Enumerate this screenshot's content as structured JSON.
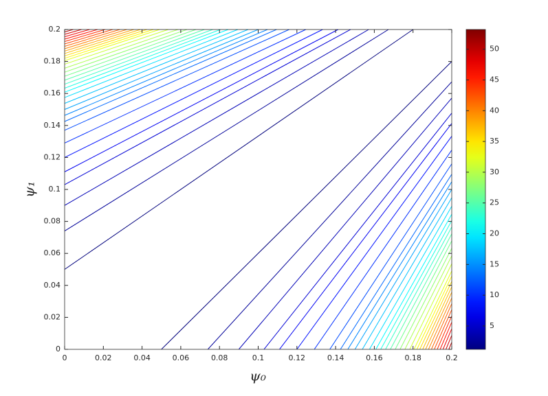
{
  "chart_data": {
    "type": "contour",
    "xlabel": "ψ₀",
    "ylabel": "ψ₁",
    "colormap": "jet",
    "xlim": [
      0,
      0.2
    ],
    "ylim": [
      0,
      0.2
    ],
    "xticks": [
      0,
      0.02,
      0.04,
      0.06,
      0.08,
      0.1,
      0.12,
      0.14,
      0.16,
      0.18,
      0.2
    ],
    "yticks": [
      0,
      0.02,
      0.04,
      0.06,
      0.08,
      0.1,
      0.12,
      0.14,
      0.16,
      0.18,
      0.2
    ],
    "clim": [
      1.2,
      53.2
    ],
    "cticks": [
      5,
      10,
      15,
      20,
      25,
      30,
      35,
      40,
      45,
      50
    ],
    "contours": [
      {
        "level": 1,
        "x": [
          0,
          0.18,
          null,
          0.05,
          0.2
        ],
        "y": [
          0.05,
          0.2,
          null,
          0,
          0.18
        ]
      },
      {
        "level": 2.5,
        "x": [
          0,
          0.1673,
          null,
          0.074,
          0.2
        ],
        "y": [
          0.074,
          0.2,
          null,
          0,
          0.1673
        ]
      },
      {
        "level": 4,
        "x": [
          0,
          0.1571,
          null,
          0.09,
          0.2
        ],
        "y": [
          0.09,
          0.2,
          null,
          0,
          0.1571
        ]
      },
      {
        "level": 5.5,
        "x": [
          0,
          0.1477,
          null,
          0.103,
          0.2
        ],
        "y": [
          0.103,
          0.2,
          null,
          0,
          0.1477
        ]
      },
      {
        "level": 7,
        "x": [
          0,
          0.1413,
          null,
          0.111,
          0.2
        ],
        "y": [
          0.111,
          0.2,
          null,
          0,
          0.1413
        ]
      },
      {
        "level": 8.5,
        "x": [
          0,
          0.1333,
          null,
          0.12,
          0.2
        ],
        "y": [
          0.12,
          0.2,
          null,
          0,
          0.1333
        ]
      },
      {
        "level": 10,
        "x": [
          0,
          0.1246,
          null,
          0.129,
          0.2
        ],
        "y": [
          0.129,
          0.2,
          null,
          0,
          0.1246
        ]
      },
      {
        "level": 11.5,
        "x": [
          0,
          0.116,
          null,
          0.137,
          0.2
        ],
        "y": [
          0.137,
          0.2,
          null,
          0,
          0.116
        ]
      },
      {
        "level": 13,
        "x": [
          0,
          0.1095,
          null,
          0.1425,
          0.2
        ],
        "y": [
          0.1425,
          0.2,
          null,
          0,
          0.1095
        ]
      },
      {
        "level": 14.5,
        "x": [
          0,
          0.1048,
          null,
          0.1463,
          0.2
        ],
        "y": [
          0.1463,
          0.2,
          null,
          0,
          0.1048
        ]
      },
      {
        "level": 16,
        "x": [
          0,
          0.1,
          null,
          0.15,
          0.2
        ],
        "y": [
          0.15,
          0.2,
          null,
          0,
          0.1
        ]
      },
      {
        "level": 17.5,
        "x": [
          0,
          0.0948,
          null,
          0.1538,
          0.2
        ],
        "y": [
          0.1538,
          0.2,
          null,
          0,
          0.0948
        ]
      },
      {
        "level": 19,
        "x": [
          0,
          0.0895,
          null,
          0.1575,
          0.2
        ],
        "y": [
          0.1575,
          0.2,
          null,
          0,
          0.0895
        ]
      },
      {
        "level": 20.5,
        "x": [
          0,
          0.0845,
          null,
          0.1608,
          0.2
        ],
        "y": [
          0.1608,
          0.2,
          null,
          0,
          0.0845
        ]
      },
      {
        "level": 22,
        "x": [
          0,
          0.0805,
          null,
          0.1633,
          0.2
        ],
        "y": [
          0.1633,
          0.2,
          null,
          0,
          0.0805
        ]
      },
      {
        "level": 23.5,
        "x": [
          0,
          0.0765,
          null,
          0.1658,
          0.2
        ],
        "y": [
          0.1658,
          0.2,
          null,
          0,
          0.0765
        ]
      },
      {
        "level": 25,
        "x": [
          0,
          0.0722,
          null,
          0.1683,
          0.2
        ],
        "y": [
          0.1683,
          0.2,
          null,
          0,
          0.0722
        ]
      },
      {
        "level": 26.5,
        "x": [
          0,
          0.0678,
          null,
          0.1708,
          0.2
        ],
        "y": [
          0.1708,
          0.2,
          null,
          0,
          0.0678
        ]
      },
      {
        "level": 28,
        "x": [
          0,
          0.0632,
          null,
          0.1733,
          0.2
        ],
        "y": [
          0.1733,
          0.2,
          null,
          0,
          0.0632
        ]
      },
      {
        "level": 29.5,
        "x": [
          0,
          0.0585,
          null,
          0.1758,
          0.2
        ],
        "y": [
          0.1758,
          0.2,
          null,
          0,
          0.0585
        ]
      },
      {
        "level": 31,
        "x": [
          0,
          0.0535,
          null,
          0.1783,
          0.2
        ],
        "y": [
          0.1783,
          0.2,
          null,
          0,
          0.0535
        ]
      },
      {
        "level": 32.5,
        "x": [
          0,
          0.049,
          null,
          0.1805,
          0.2
        ],
        "y": [
          0.1805,
          0.2,
          null,
          0,
          0.049
        ]
      },
      {
        "level": 34,
        "x": [
          0,
          0.0458,
          null,
          0.182,
          0.2
        ],
        "y": [
          0.182,
          0.2,
          null,
          0,
          0.0458
        ]
      },
      {
        "level": 35.5,
        "x": [
          0,
          0.0425,
          null,
          0.1835,
          0.2
        ],
        "y": [
          0.1835,
          0.2,
          null,
          0,
          0.0425
        ]
      },
      {
        "level": 37,
        "x": [
          0,
          0.0391,
          null,
          0.185,
          0.2
        ],
        "y": [
          0.185,
          0.2,
          null,
          0,
          0.0391
        ]
      },
      {
        "level": 38.5,
        "x": [
          0,
          0.0357,
          null,
          0.1865,
          0.2
        ],
        "y": [
          0.1865,
          0.2,
          null,
          0,
          0.0357
        ]
      },
      {
        "level": 40,
        "x": [
          0,
          0.0321,
          null,
          0.188,
          0.2
        ],
        "y": [
          0.188,
          0.2,
          null,
          0,
          0.0321
        ]
      },
      {
        "level": 41.5,
        "x": [
          0,
          0.0285,
          null,
          0.1895,
          0.2
        ],
        "y": [
          0.1895,
          0.2,
          null,
          0,
          0.0285
        ]
      },
      {
        "level": 43,
        "x": [
          0,
          0.0248,
          null,
          0.191,
          0.2
        ],
        "y": [
          0.191,
          0.2,
          null,
          0,
          0.0248
        ]
      },
      {
        "level": 44.5,
        "x": [
          0,
          0.0209,
          null,
          0.1925,
          0.2
        ],
        "y": [
          0.1925,
          0.2,
          null,
          0,
          0.0209
        ]
      },
      {
        "level": 46,
        "x": [
          0,
          0.017,
          null,
          0.194,
          0.2
        ],
        "y": [
          0.194,
          0.2,
          null,
          0,
          0.017
        ]
      },
      {
        "level": 47.5,
        "x": [
          0,
          0.0129,
          null,
          0.1955,
          0.2
        ],
        "y": [
          0.1955,
          0.2,
          null,
          0,
          0.0129
        ]
      },
      {
        "level": 49,
        "x": [
          0,
          0.0087,
          null,
          0.197,
          0.2
        ],
        "y": [
          0.197,
          0.2,
          null,
          0,
          0.0087
        ]
      },
      {
        "level": 50.5,
        "x": [
          0,
          0.0044,
          null,
          0.1985,
          0.2
        ],
        "y": [
          0.1985,
          0.2,
          null,
          0,
          0.0044
        ]
      }
    ]
  }
}
